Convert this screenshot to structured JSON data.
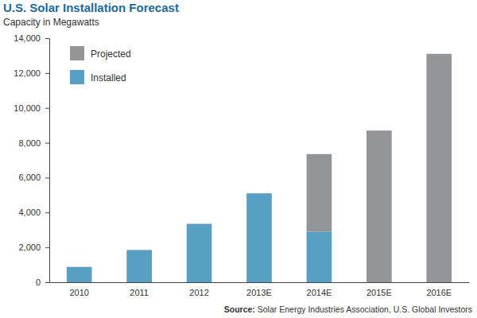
{
  "chart_data": {
    "type": "bar",
    "title": "U.S. Solar Installation Forecast",
    "subtitle": "Capacity in Megawatts",
    "categories": [
      "2010",
      "2011",
      "2012",
      "2013E",
      "2014E",
      "2015E",
      "2016E"
    ],
    "series": [
      {
        "name": "Installed",
        "color": "#57a0c3",
        "values": [
          880,
          1850,
          3350,
          5100,
          2900,
          null,
          null
        ]
      },
      {
        "name": "Projected",
        "color": "#939598",
        "values": [
          null,
          null,
          null,
          null,
          4450,
          8700,
          13100
        ]
      }
    ],
    "stacked": true,
    "legend": "top-left",
    "ylim": [
      0,
      14000
    ],
    "yticks": [
      0,
      {
        "value": 2000,
        "label": "2,000"
      },
      {
        "value": 4000,
        "label": "4,000"
      },
      {
        "value": 6000,
        "label": "6,000"
      },
      {
        "value": 8000,
        "label": "8,000"
      },
      {
        "value": 10000,
        "label": "10,000"
      },
      {
        "value": 12000,
        "label": "12,000"
      },
      {
        "value": 14000,
        "label": "14,000"
      }
    ],
    "source": "Source: Solar Energy Industries Association, U.S. Global Investors"
  }
}
